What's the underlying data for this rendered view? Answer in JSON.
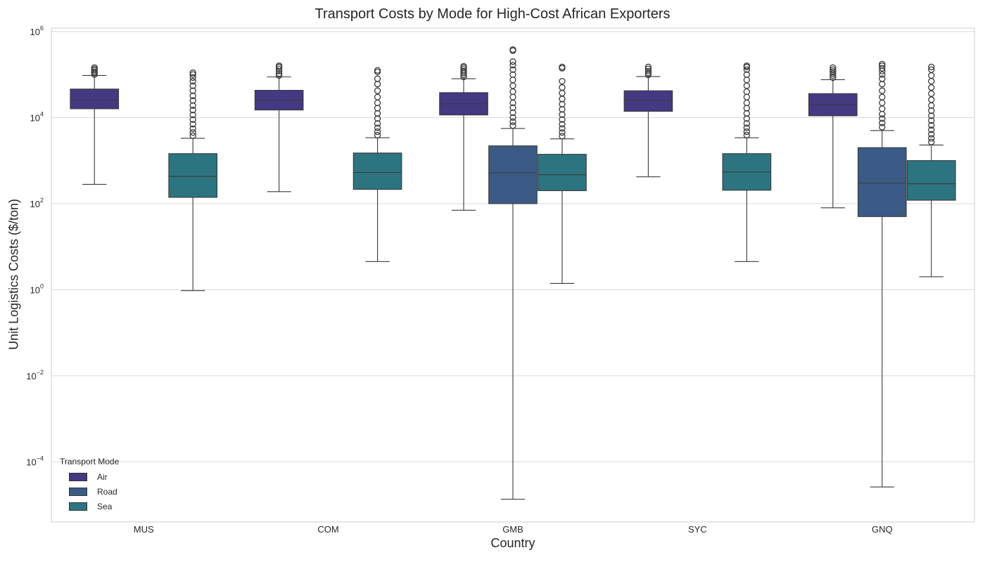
{
  "chart_data": {
    "type": "box",
    "title": "Transport Costs by Mode for High-Cost African Exporters",
    "xlabel": "Country",
    "ylabel": "Unit Logistics Costs ($/ton)",
    "yscale": "log",
    "ylim": [
      4e-06,
      1200000
    ],
    "yticks": [
      {
        "base": "10",
        "exp": "6"
      },
      {
        "base": "10",
        "exp": "4"
      },
      {
        "base": "10",
        "exp": "2"
      },
      {
        "base": "10",
        "exp": "0"
      },
      {
        "base": "10",
        "exp": "−2"
      },
      {
        "base": "10",
        "exp": "−4"
      }
    ],
    "grid": true,
    "categories": [
      "MUS",
      "COM",
      "GMB",
      "SYC",
      "GNQ"
    ],
    "legend": {
      "title": "Transport Mode",
      "placement": "lower-left",
      "entries": [
        {
          "name": "Air",
          "color": "#443983"
        },
        {
          "name": "Road",
          "color": "#3b5b86"
        },
        {
          "name": "Sea",
          "color": "#2c7480"
        }
      ]
    },
    "series": [
      {
        "name": "Air",
        "color": "#443983",
        "boxes": [
          {
            "category": "MUS",
            "whislo": 280,
            "q1": 16000,
            "median": 26000,
            "q3": 46000,
            "whishi": 95000,
            "fliers": [
              100000,
              108000,
              115000,
              125000,
              135000,
              145000
            ]
          },
          {
            "category": "COM",
            "whislo": 190,
            "q1": 15000,
            "median": 25000,
            "q3": 43000,
            "whishi": 88000,
            "fliers": [
              95000,
              105000,
              120000,
              135000,
              150000,
              160000
            ]
          },
          {
            "category": "GMB",
            "whislo": 70,
            "q1": 11500,
            "median": 21000,
            "q3": 38000,
            "whishi": 80000,
            "fliers": [
              88000,
              98000,
              108000,
              120000,
              132000,
              145000,
              155000
            ]
          },
          {
            "category": "SYC",
            "whislo": 420,
            "q1": 14000,
            "median": 25000,
            "q3": 42000,
            "whishi": 90000,
            "fliers": [
              98000,
              108000,
              120000,
              135000,
              150000
            ]
          },
          {
            "category": "GNQ",
            "whislo": 80,
            "q1": 11000,
            "median": 20000,
            "q3": 36000,
            "whishi": 76000,
            "fliers": [
              85000,
              95000,
              105000,
              118000,
              130000,
              145000
            ]
          }
        ]
      },
      {
        "name": "Road",
        "color": "#3b5b86",
        "boxes": [
          {
            "category": "GMB",
            "whislo": 1.35e-05,
            "q1": 100,
            "median": 520,
            "q3": 2200,
            "whishi": 5600,
            "fliers": [
              6500,
              8000,
              10000,
              13000,
              17000,
              22000,
              30000,
              40000,
              55000,
              75000,
              100000,
              130000,
              165000,
              200000,
              360000,
              380000
            ]
          },
          {
            "category": "GNQ",
            "whislo": 2.6e-05,
            "q1": 50,
            "median": 300,
            "q3": 2000,
            "whishi": 5000,
            "fliers": [
              6000,
              7500,
              9500,
              12000,
              16000,
              22000,
              30000,
              42000,
              60000,
              80000,
              100000,
              120000,
              140000,
              160000,
              175000
            ]
          }
        ]
      },
      {
        "name": "Sea",
        "color": "#2c7480",
        "boxes": [
          {
            "category": "MUS",
            "whislo": 0.95,
            "q1": 140,
            "median": 430,
            "q3": 1450,
            "whishi": 3300,
            "fliers": [
              3800,
              4500,
              5500,
              7000,
              9000,
              11500,
              15000,
              19000,
              25000,
              32000,
              42000,
              55000,
              70000,
              85000,
              100000,
              110000
            ]
          },
          {
            "category": "COM",
            "whislo": 4.5,
            "q1": 215,
            "median": 530,
            "q3": 1500,
            "whishi": 3400,
            "fliers": [
              3900,
              4700,
              5800,
              7300,
              9500,
              12500,
              16500,
              22000,
              30000,
              42000,
              60000,
              80000,
              115000,
              125000
            ]
          },
          {
            "category": "GMB",
            "whislo": 1.4,
            "q1": 200,
            "median": 470,
            "q3": 1400,
            "whishi": 3200,
            "fliers": [
              3700,
              4500,
              5600,
              7000,
              9000,
              11800,
              15500,
              20500,
              27000,
              37000,
              50000,
              70000,
              140000,
              150000
            ]
          },
          {
            "category": "SYC",
            "whislo": 4.5,
            "q1": 205,
            "median": 540,
            "q3": 1450,
            "whishi": 3400,
            "fliers": [
              3900,
              4700,
              5800,
              7300,
              9500,
              12500,
              16500,
              22000,
              30000,
              40000,
              55000,
              75000,
              100000,
              130000,
              150000,
              160000
            ]
          },
          {
            "category": "GNQ",
            "whislo": 2.0,
            "q1": 120,
            "median": 290,
            "q3": 1000,
            "whishi": 2300,
            "fliers": [
              2700,
              3300,
              4100,
              5200,
              6600,
              8500,
              11000,
              14500,
              19000,
              26000,
              36000,
              50000,
              70000,
              95000,
              130000,
              150000
            ]
          }
        ]
      }
    ]
  }
}
